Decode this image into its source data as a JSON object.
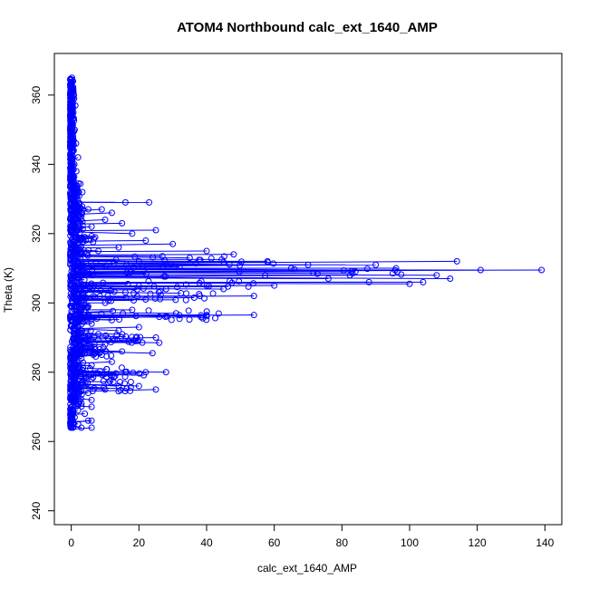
{
  "chart_data": {
    "type": "scatter",
    "title": "ATOM4 Northbound calc_ext_1640_AMP",
    "xlabel": "calc_ext_1640_AMP",
    "ylabel": "Theta (K)",
    "xlim": [
      -5,
      145
    ],
    "ylim": [
      236,
      372
    ],
    "x_ticks": [
      0,
      20,
      40,
      60,
      80,
      100,
      120,
      140
    ],
    "y_ticks": [
      240,
      260,
      280,
      300,
      320,
      340,
      360
    ],
    "x_tick_labels": [
      "0",
      "20",
      "40",
      "60",
      "80",
      "100",
      "120",
      "140"
    ],
    "y_tick_labels": [
      "240",
      "260",
      "280",
      "300",
      "320",
      "340",
      "360"
    ],
    "grid": false,
    "legend": "none",
    "series_color": "#0000ff",
    "marker": "open-circle",
    "connected": true,
    "points": [
      [
        0.2,
        365
      ],
      [
        0.5,
        364
      ],
      [
        0.3,
        362
      ],
      [
        0.8,
        360
      ],
      [
        0.4,
        358
      ],
      [
        1.2,
        357
      ],
      [
        0.6,
        355
      ],
      [
        0.3,
        352
      ],
      [
        1.0,
        350
      ],
      [
        0.5,
        348
      ],
      [
        1.4,
        346
      ],
      [
        0.7,
        344
      ],
      [
        2.0,
        342
      ],
      [
        0.9,
        340
      ],
      [
        1.5,
        338
      ],
      [
        0.6,
        336
      ],
      [
        1.1,
        334
      ],
      [
        2.2,
        332
      ],
      [
        0.8,
        331
      ],
      [
        16,
        329
      ],
      [
        23,
        329
      ],
      [
        1.8,
        328
      ],
      [
        5,
        327
      ],
      [
        9,
        327
      ],
      [
        12,
        326
      ],
      [
        3,
        325
      ],
      [
        10,
        324
      ],
      [
        15,
        323
      ],
      [
        6,
        322
      ],
      [
        25,
        321
      ],
      [
        18,
        320
      ],
      [
        4,
        319
      ],
      [
        22,
        318
      ],
      [
        30,
        317
      ],
      [
        14,
        316
      ],
      [
        40,
        315
      ],
      [
        8,
        315
      ],
      [
        48,
        314
      ],
      [
        35,
        313
      ],
      [
        58,
        312
      ],
      [
        20,
        312
      ],
      [
        70,
        311
      ],
      [
        90,
        311
      ],
      [
        114,
        312
      ],
      [
        121,
        309.5
      ],
      [
        139,
        309.5
      ],
      [
        96,
        310
      ],
      [
        65,
        310
      ],
      [
        84,
        309
      ],
      [
        108,
        308
      ],
      [
        112,
        307
      ],
      [
        76,
        307
      ],
      [
        104,
        306
      ],
      [
        100,
        305.5
      ],
      [
        88,
        306
      ],
      [
        60,
        305
      ],
      [
        45,
        304
      ],
      [
        28,
        304
      ],
      [
        16,
        303
      ],
      [
        38,
        302
      ],
      [
        54,
        302
      ],
      [
        22,
        301
      ],
      [
        10,
        300
      ],
      [
        5,
        299
      ],
      [
        18,
        298
      ],
      [
        31,
        297
      ],
      [
        54,
        296.5
      ],
      [
        40,
        296.5
      ],
      [
        26,
        296
      ],
      [
        12,
        295
      ],
      [
        6,
        294
      ],
      [
        20,
        293
      ],
      [
        14,
        292
      ],
      [
        8,
        291
      ],
      [
        25,
        290
      ],
      [
        19,
        289
      ],
      [
        26,
        288.5
      ],
      [
        10,
        288
      ],
      [
        4,
        287
      ],
      [
        15,
        286
      ],
      [
        24,
        285.5
      ],
      [
        9,
        285
      ],
      [
        3,
        284
      ],
      [
        12,
        283
      ],
      [
        6,
        282
      ],
      [
        2,
        281
      ],
      [
        28,
        280
      ],
      [
        22,
        280
      ],
      [
        16,
        280
      ],
      [
        12,
        279
      ],
      [
        6,
        278
      ],
      [
        3,
        277
      ],
      [
        14,
        276
      ],
      [
        20,
        276
      ],
      [
        25,
        275
      ],
      [
        10,
        275
      ],
      [
        5,
        274
      ],
      [
        2,
        273
      ],
      [
        6,
        272
      ],
      [
        3,
        271
      ],
      [
        6,
        270
      ],
      [
        2,
        269
      ],
      [
        4,
        268
      ],
      [
        1,
        267
      ],
      [
        5,
        266
      ],
      [
        6,
        266
      ],
      [
        2,
        265
      ],
      [
        3,
        264
      ],
      [
        6,
        264
      ],
      [
        0.5,
        264
      ]
    ]
  }
}
